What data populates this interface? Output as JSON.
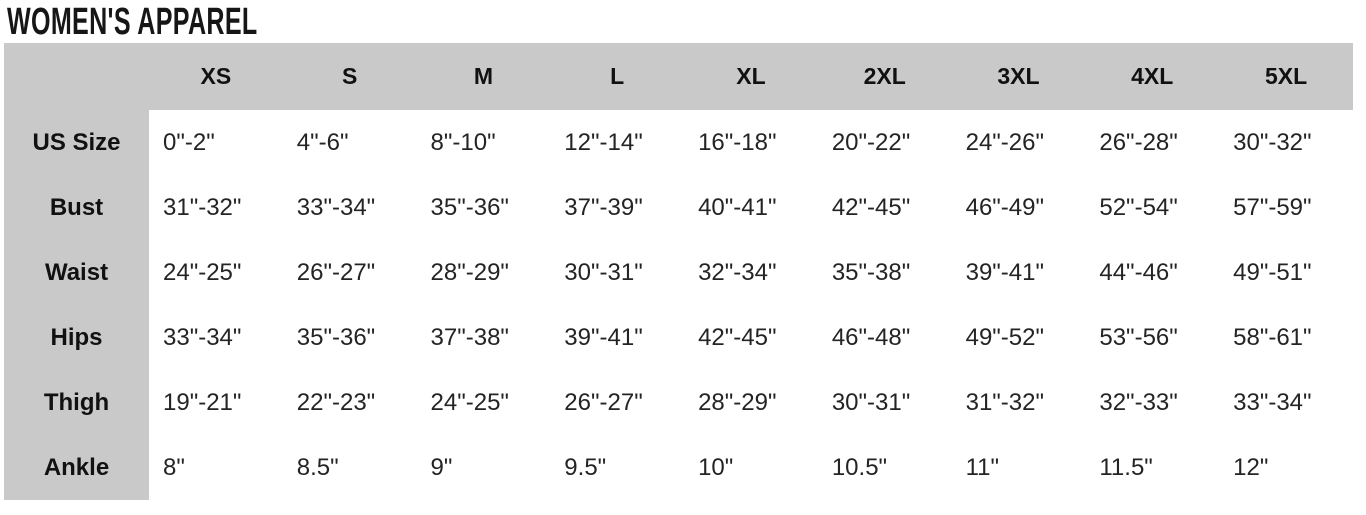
{
  "title": "WOMEN'S APPAREL",
  "colors": {
    "header_bg": "#c9c9c9",
    "body_bg": "#ffffff",
    "text": "#1b1b1b"
  },
  "chart_data": {
    "type": "table",
    "title": "WOMEN'S APPAREL",
    "columns": [
      "XS",
      "S",
      "M",
      "L",
      "XL",
      "2XL",
      "3XL",
      "4XL",
      "5XL"
    ],
    "row_labels": [
      "US Size",
      "Bust",
      "Waist",
      "Hips",
      "Thigh",
      "Ankle"
    ],
    "rows": [
      {
        "label": "US Size",
        "values": [
          "0\"-2\"",
          "4\"-6\"",
          "8\"-10\"",
          "12\"-14\"",
          "16\"-18\"",
          "20\"-22\"",
          "24\"-26\"",
          "26\"-28\"",
          "30\"-32\""
        ]
      },
      {
        "label": "Bust",
        "values": [
          "31\"-32\"",
          "33\"-34\"",
          "35\"-36\"",
          "37\"-39\"",
          "40\"-41\"",
          "42\"-45\"",
          "46\"-49\"",
          "52\"-54\"",
          "57\"-59\""
        ]
      },
      {
        "label": "Waist",
        "values": [
          "24\"-25\"",
          "26\"-27\"",
          "28\"-29\"",
          "30\"-31\"",
          "32\"-34\"",
          "35\"-38\"",
          "39\"-41\"",
          "44\"-46\"",
          "49\"-51\""
        ]
      },
      {
        "label": "Hips",
        "values": [
          "33\"-34\"",
          "35\"-36\"",
          "37\"-38\"",
          "39\"-41\"",
          "42\"-45\"",
          "46\"-48\"",
          "49\"-52\"",
          "53\"-56\"",
          "58\"-61\""
        ]
      },
      {
        "label": "Thigh",
        "values": [
          "19\"-21\"",
          "22\"-23\"",
          "24\"-25\"",
          "26\"-27\"",
          "28\"-29\"",
          "30\"-31\"",
          "31\"-32\"",
          "32\"-33\"",
          "33\"-34\""
        ]
      },
      {
        "label": "Ankle",
        "values": [
          "8\"",
          "8.5\"",
          "9\"",
          "9.5\"",
          "10\"",
          "10.5\"",
          "11\"",
          "11.5\"",
          "12\""
        ]
      }
    ]
  }
}
